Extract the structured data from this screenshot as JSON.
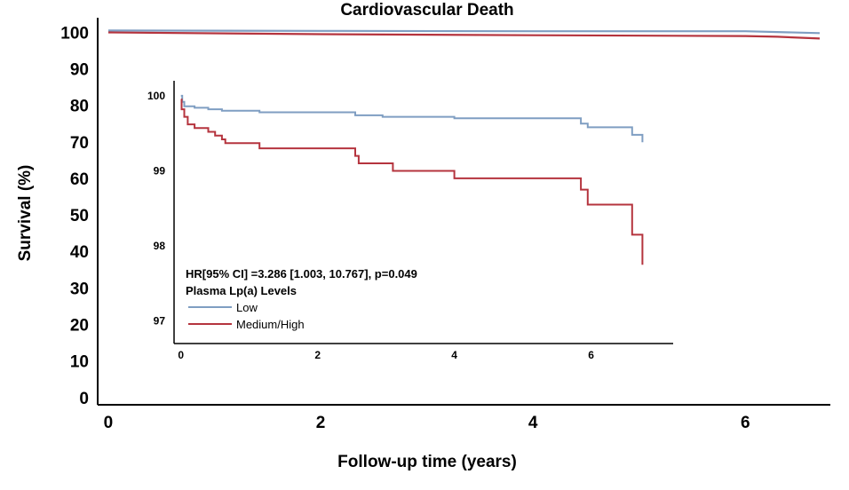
{
  "chart_data": [
    {
      "type": "line",
      "title": "Cardiovascular Death",
      "xlabel": "Follow-up time (years)",
      "ylabel": "Survival (%)",
      "xlim": [
        -0.1,
        6.8
      ],
      "ylim": [
        -2,
        104
      ],
      "x_ticks": [
        0,
        2,
        4,
        6
      ],
      "x_tick_labels": [
        "0",
        "2",
        "4",
        "6"
      ],
      "y_ticks": [
        0,
        10,
        20,
        30,
        40,
        50,
        60,
        70,
        80,
        90,
        100
      ],
      "y_tick_labels": [
        "0",
        "10",
        "20",
        "30",
        "40",
        "50",
        "60",
        "70",
        "80",
        "90",
        "100"
      ],
      "series": [
        {
          "name": "Low",
          "color": "#7f9ec2",
          "x": [
            0,
            2,
            4,
            6,
            6.7
          ],
          "y": [
            100.5,
            100.4,
            100.3,
            100.3,
            99.8
          ]
        },
        {
          "name": "Medium/High",
          "color": "#b5343e",
          "x": [
            0,
            2,
            4,
            6,
            6.3,
            6.7
          ],
          "y": [
            100,
            99.5,
            99.2,
            99.0,
            98.8,
            98.3
          ]
        }
      ]
    },
    {
      "type": "line",
      "title": "",
      "xlabel": "",
      "ylabel": "",
      "xlim": [
        -0.1,
        7.2
      ],
      "ylim": [
        96.7,
        100.2
      ],
      "x_ticks": [
        0,
        2,
        4,
        6
      ],
      "x_tick_labels": [
        "0",
        "2",
        "4",
        "6"
      ],
      "y_ticks": [
        97,
        98,
        99,
        100
      ],
      "y_tick_labels": [
        "97",
        "98",
        "99",
        "100"
      ],
      "annotation": "HR[95% CI] =3.286 [1.003, 10.767], p=0.049",
      "legend": {
        "title": "Plasma Lp(a) Levels",
        "entries": [
          {
            "label": "Low",
            "color": "#7f9ec2"
          },
          {
            "label": "Medium/High",
            "color": "#b5343e"
          }
        ]
      },
      "series": [
        {
          "name": "Low",
          "color": "#7f9ec2",
          "steps": [
            [
              0,
              100
            ],
            [
              0.02,
              99.92
            ],
            [
              0.05,
              99.86
            ],
            [
              0.2,
              99.84
            ],
            [
              0.4,
              99.82
            ],
            [
              0.6,
              99.8
            ],
            [
              1.15,
              99.78
            ],
            [
              2.55,
              99.74
            ],
            [
              2.95,
              99.72
            ],
            [
              4.0,
              99.7
            ],
            [
              5.85,
              99.63
            ],
            [
              5.95,
              99.58
            ],
            [
              6.6,
              99.48
            ],
            [
              6.75,
              99.38
            ],
            [
              6.75,
              99.38
            ]
          ]
        },
        {
          "name": "Medium/High",
          "color": "#b5343e",
          "steps": [
            [
              0,
              99.95
            ],
            [
              0.01,
              99.82
            ],
            [
              0.05,
              99.72
            ],
            [
              0.1,
              99.62
            ],
            [
              0.2,
              99.57
            ],
            [
              0.4,
              99.52
            ],
            [
              0.5,
              99.47
            ],
            [
              0.6,
              99.42
            ],
            [
              0.65,
              99.37
            ],
            [
              1.15,
              99.3
            ],
            [
              2.55,
              99.2
            ],
            [
              2.6,
              99.1
            ],
            [
              3.1,
              99.0
            ],
            [
              4.0,
              98.9
            ],
            [
              5.85,
              98.75
            ],
            [
              5.95,
              98.55
            ],
            [
              6.6,
              98.15
            ],
            [
              6.75,
              97.75
            ],
            [
              6.75,
              97.75
            ]
          ]
        }
      ]
    }
  ]
}
